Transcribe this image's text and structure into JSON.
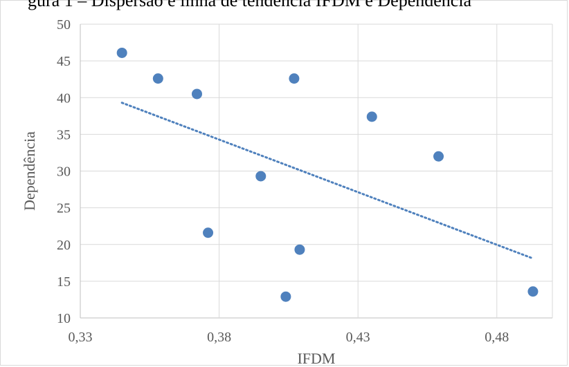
{
  "caption_fragment": "gura 1 – Dispersão e linha de tendência IFDM e Dependência",
  "chart_data": {
    "type": "scatter",
    "xlabel": "IFDM",
    "ylabel": "Dependência",
    "xlim": [
      0.33,
      0.5
    ],
    "ylim": [
      10,
      50
    ],
    "x_ticks": [
      "0,33",
      "0,38",
      "0,43",
      "0,48"
    ],
    "y_ticks": [
      "10",
      "15",
      "20",
      "25",
      "30",
      "35",
      "40",
      "45",
      "50"
    ],
    "grid": true,
    "points": [
      {
        "x": 0.345,
        "y": 46.1
      },
      {
        "x": 0.358,
        "y": 42.6
      },
      {
        "x": 0.372,
        "y": 40.5
      },
      {
        "x": 0.376,
        "y": 21.6
      },
      {
        "x": 0.395,
        "y": 29.3
      },
      {
        "x": 0.404,
        "y": 12.9
      },
      {
        "x": 0.407,
        "y": 42.6
      },
      {
        "x": 0.409,
        "y": 19.3
      },
      {
        "x": 0.435,
        "y": 37.4
      },
      {
        "x": 0.459,
        "y": 32.0
      },
      {
        "x": 0.493,
        "y": 13.6
      }
    ],
    "trendline": {
      "type": "linear",
      "from": {
        "x": 0.345,
        "y": 39.3
      },
      "to": {
        "x": 0.493,
        "y": 18.1
      }
    },
    "marker_color": "#4f81bd",
    "trendline_color": "#4f81bd"
  }
}
